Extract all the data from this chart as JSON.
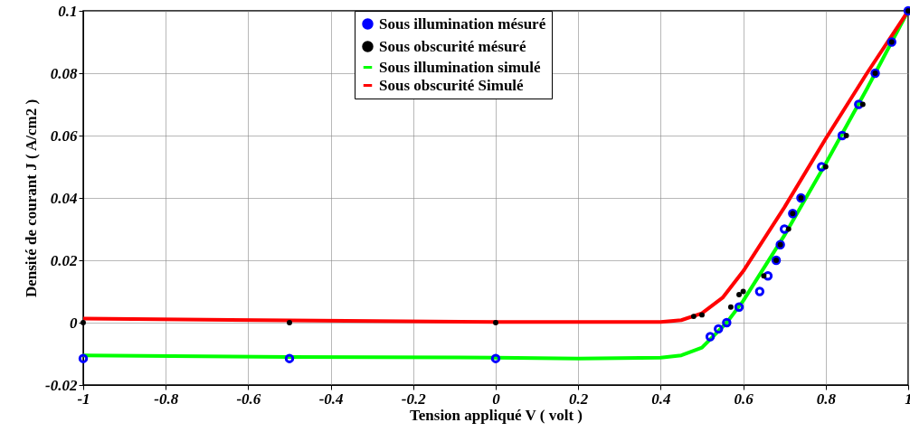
{
  "chart_data": {
    "type": "scatter",
    "xlabel": "Tension appliqué  V ( volt )",
    "ylabel": "Densité de courant J ( A/cm2 )",
    "xlim": [
      -1,
      1
    ],
    "xticks": [
      -1,
      -0.8,
      -0.6,
      -0.4,
      -0.2,
      0,
      0.2,
      0.4,
      0.6,
      0.8,
      1
    ],
    "ylim": [
      -0.02,
      0.1
    ],
    "yticks": [
      -0.02,
      0,
      0.02,
      0.04,
      0.06,
      0.08,
      0.1
    ],
    "grid": true,
    "legend": "top",
    "series": [
      {
        "name": "Sous illumination mésuré",
        "marker": "circle",
        "color": "#0000ff",
        "x": [
          -1,
          -0.5,
          0,
          0.52,
          0.54,
          0.56,
          0.59,
          0.64,
          0.66,
          0.68,
          0.69,
          0.7,
          0.72,
          0.74,
          0.79,
          0.84,
          0.88,
          0.92,
          0.96,
          1
        ],
        "values": [
          -0.0115,
          -0.0115,
          -0.0115,
          -0.0045,
          -0.002,
          0,
          0.005,
          0.01,
          0.015,
          0.02,
          0.025,
          0.03,
          0.035,
          0.04,
          0.05,
          0.06,
          0.07,
          0.08,
          0.09,
          0.1
        ]
      },
      {
        "name": "Sous obscurité mésuré",
        "marker": "circle",
        "color": "#000000",
        "x": [
          -1,
          -0.5,
          0,
          0.48,
          0.5,
          0.57,
          0.59,
          0.6,
          0.65,
          0.68,
          0.69,
          0.71,
          0.72,
          0.74,
          0.8,
          0.85,
          0.89,
          0.92,
          0.96,
          1
        ],
        "values": [
          0,
          0,
          0,
          0.002,
          0.0025,
          0.005,
          0.009,
          0.01,
          0.015,
          0.02,
          0.025,
          0.03,
          0.035,
          0.04,
          0.05,
          0.06,
          0.07,
          0.08,
          0.09,
          0.1
        ]
      },
      {
        "name": "Sous illumination simulé",
        "type": "line",
        "color": "#00ff00",
        "x": [
          -1,
          -0.5,
          0,
          0.2,
          0.4,
          0.45,
          0.5,
          0.53,
          0.56,
          0.6,
          0.7,
          0.8,
          0.9,
          1
        ],
        "values": [
          -0.0105,
          -0.011,
          -0.0112,
          -0.0115,
          -0.0112,
          -0.0105,
          -0.008,
          -0.004,
          0,
          0.007,
          0.028,
          0.051,
          0.075,
          0.1
        ]
      },
      {
        "name": "Sous obscurité Simulé",
        "type": "line",
        "color": "#ff0000",
        "x": [
          -1,
          -0.5,
          0,
          0.4,
          0.45,
          0.5,
          0.55,
          0.6,
          0.7,
          0.8,
          0.9,
          1
        ],
        "values": [
          0.0013,
          0.0007,
          0.0002,
          0.0002,
          0.0008,
          0.003,
          0.008,
          0.0165,
          0.037,
          0.059,
          0.08,
          0.1
        ]
      }
    ]
  }
}
